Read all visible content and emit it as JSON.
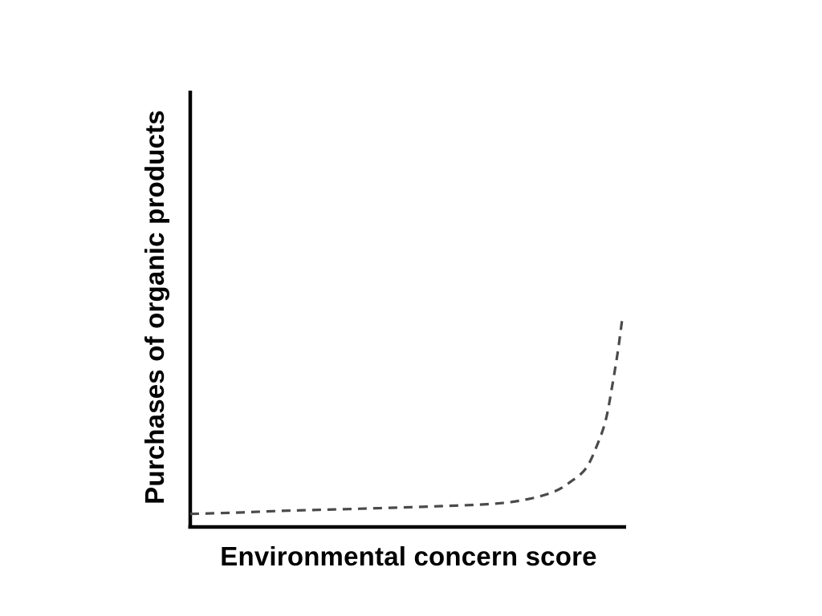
{
  "chart": {
    "y_axis_label": "Purchases of organic products",
    "x_axis_label": "Environmental concern score",
    "axis_color": "#000000",
    "curve_color": "#4a4a4a",
    "label_color": "#000000",
    "background_color": "#ffffff"
  },
  "chart_data": {
    "type": "line",
    "title": "",
    "xlabel": "Environmental concern score",
    "ylabel": "Purchases of organic products",
    "line_style": "dashed",
    "tick_labels": "none",
    "grid": false,
    "legend": "none",
    "trend": "flat near zero across most of the x range, then sharp exponential rise at the highest environmental concern scores, peaking at about 48% of the y-axis height",
    "xlim": [
      0,
      1
    ],
    "ylim": [
      0,
      1
    ],
    "series": [
      {
        "name": "purchases-vs-concern",
        "points": [
          [
            0.0,
            0.03
          ],
          [
            0.105,
            0.033
          ],
          [
            0.21,
            0.037
          ],
          [
            0.392,
            0.042
          ],
          [
            0.576,
            0.048
          ],
          [
            0.705,
            0.054
          ],
          [
            0.779,
            0.065
          ],
          [
            0.834,
            0.081
          ],
          [
            0.871,
            0.103
          ],
          [
            0.908,
            0.135
          ],
          [
            0.935,
            0.192
          ],
          [
            0.954,
            0.249
          ],
          [
            0.969,
            0.33
          ],
          [
            0.981,
            0.404
          ],
          [
            0.991,
            0.478
          ]
        ]
      }
    ]
  }
}
